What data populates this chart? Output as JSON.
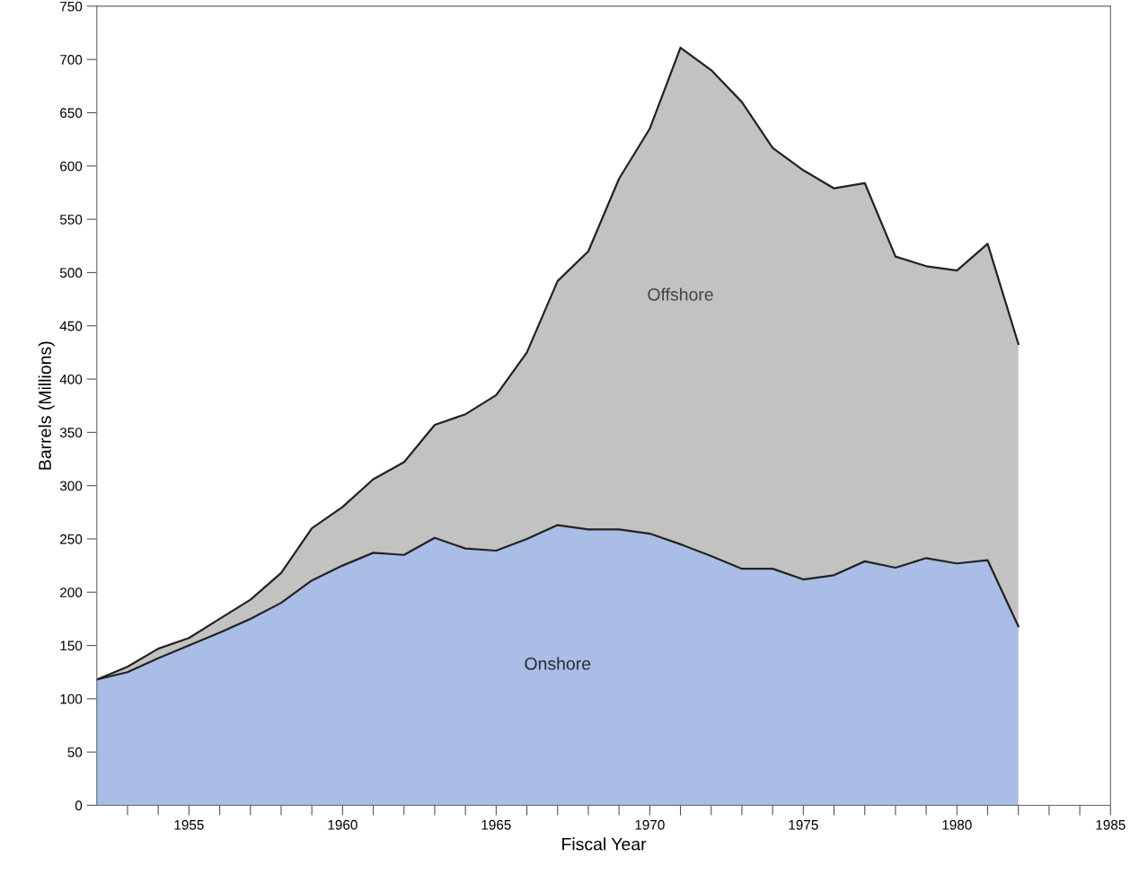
{
  "chart_data": {
    "type": "area",
    "stacked": true,
    "xlabel": "Fiscal Year",
    "ylabel": "Barrels (Millions)",
    "x": [
      1952,
      1953,
      1954,
      1955,
      1956,
      1957,
      1958,
      1959,
      1960,
      1961,
      1962,
      1963,
      1964,
      1965,
      1966,
      1967,
      1968,
      1969,
      1970,
      1971,
      1972,
      1973,
      1974,
      1975,
      1976,
      1977,
      1978,
      1979,
      1980,
      1981,
      1982
    ],
    "series": [
      {
        "name": "Onshore",
        "color": "#a9bde6",
        "values": [
          118,
          125,
          138,
          150,
          162,
          175,
          190,
          211,
          225,
          237,
          235,
          251,
          241,
          239,
          250,
          263,
          259,
          259,
          255,
          245,
          234,
          222,
          222,
          212,
          216,
          229,
          223,
          232,
          227,
          230,
          168
        ]
      },
      {
        "name": "Offshore",
        "color": "#c2c2c0",
        "values": [
          0,
          5,
          9,
          7,
          13,
          18,
          28,
          49,
          55,
          69,
          87,
          106,
          126,
          146,
          175,
          229,
          261,
          329,
          380,
          466,
          456,
          438,
          395,
          384,
          363,
          355,
          292,
          274,
          275,
          297,
          265
        ]
      }
    ],
    "xlim": [
      1952,
      1985
    ],
    "xticks": [
      {
        "value": 1953,
        "label": null
      },
      {
        "value": 1954,
        "label": null
      },
      1955,
      {
        "value": 1956,
        "label": null
      },
      {
        "value": 1957,
        "label": null
      },
      {
        "value": 1958,
        "label": null
      },
      {
        "value": 1959,
        "label": null
      },
      1960,
      {
        "value": 1961,
        "label": null
      },
      {
        "value": 1962,
        "label": null
      },
      {
        "value": 1963,
        "label": null
      },
      {
        "value": 1964,
        "label": null
      },
      1965,
      {
        "value": 1966,
        "label": null
      },
      {
        "value": 1967,
        "label": null
      },
      {
        "value": 1968,
        "label": null
      },
      {
        "value": 1969,
        "label": null
      },
      1970,
      {
        "value": 1971,
        "label": null
      },
      {
        "value": 1972,
        "label": null
      },
      {
        "value": 1973,
        "label": null
      },
      {
        "value": 1974,
        "label": null
      },
      1975,
      {
        "value": 1976,
        "label": null
      },
      {
        "value": 1977,
        "label": null
      },
      {
        "value": 1978,
        "label": null
      },
      {
        "value": 1979,
        "label": null
      },
      1980,
      {
        "value": 1981,
        "label": null
      },
      {
        "value": 1982,
        "label": null
      },
      {
        "value": 1983,
        "label": null
      },
      {
        "value": 1984,
        "label": null
      },
      1985
    ],
    "ylim": [
      0,
      750
    ],
    "yticks": [
      0,
      50,
      100,
      150,
      200,
      250,
      300,
      350,
      400,
      450,
      500,
      550,
      600,
      650,
      700,
      750
    ],
    "grid": false,
    "legend": false
  }
}
